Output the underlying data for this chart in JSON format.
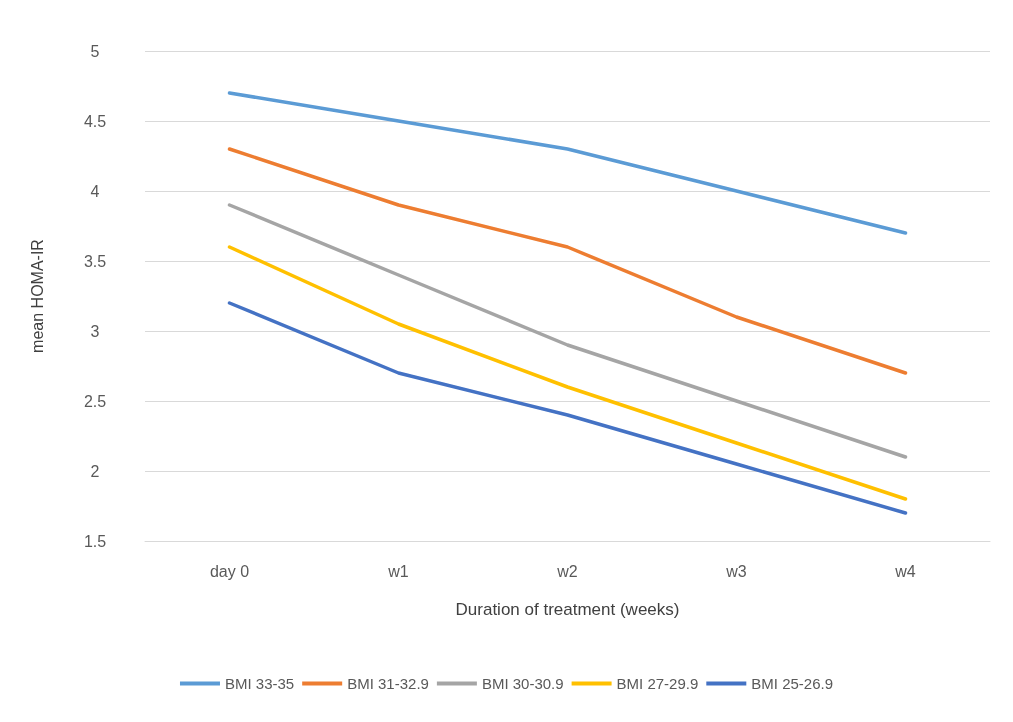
{
  "chart_data": {
    "type": "line",
    "xlabel": "Duration of treatment (weeks)",
    "ylabel": "mean HOMA-IR",
    "categories": [
      "day 0",
      "w1",
      "w2",
      "w3",
      "w4"
    ],
    "series": [
      {
        "name": "BMI 33-35",
        "color": "#5b9bd5",
        "values": [
          4.7,
          4.5,
          4.3,
          4.0,
          3.7
        ]
      },
      {
        "name": "BMI 31-32.9",
        "color": "#ed7d31",
        "values": [
          4.3,
          3.9,
          3.6,
          3.1,
          2.7
        ]
      },
      {
        "name": "BMI 30-30.9",
        "color": "#a5a5a5",
        "values": [
          3.9,
          3.4,
          2.9,
          2.5,
          2.1
        ]
      },
      {
        "name": "BMI 27-29.9",
        "color": "#ffc000",
        "values": [
          3.6,
          3.05,
          2.6,
          2.2,
          1.8
        ]
      },
      {
        "name": "BMI 25-26.9",
        "color": "#4472c4",
        "values": [
          3.2,
          2.7,
          2.4,
          2.05,
          1.7
        ]
      }
    ],
    "ylim": [
      1.5,
      5
    ],
    "yticks": [
      1.5,
      2,
      2.5,
      3,
      3.5,
      4,
      4.5,
      5
    ],
    "grid": "y",
    "legend": "bottom",
    "marker": "none",
    "line_style": "solid"
  }
}
